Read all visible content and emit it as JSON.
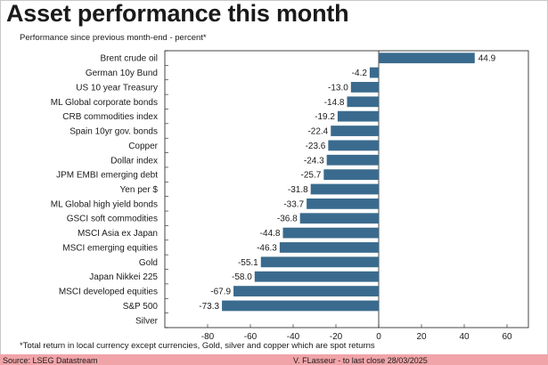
{
  "title": "Asset performance this month",
  "subtitle": "Performance since previous month-end - percent*",
  "footnote": "*Total return in local currency except currencies, Gold, silver and copper which are spot returns",
  "footer": {
    "source": "Source: LSEG Datastream",
    "credit": "V. FLasseur - to last close 28/03/2025"
  },
  "colors": {
    "bar": "#3a6b8e",
    "footer": "#f0a4a8"
  },
  "chart_data": {
    "type": "bar",
    "orientation": "horizontal",
    "categories": [
      "Brent crude oil",
      "German 10y Bund",
      "US 10 year Treasury",
      "ML Global corporate bonds",
      "CRB commodities index",
      "Spain 10yr gov. bonds",
      "Copper",
      "Dollar index",
      "JPM EMBI emerging debt",
      "Yen per $",
      "ML Global high yield bonds",
      "GSCI soft commodities",
      "MSCI Asia ex Japan",
      "MSCI emerging equities",
      "Gold",
      "Japan Nikkei 225",
      "MSCI developed equities",
      "S&P 500",
      "Silver"
    ],
    "values": [
      44.9,
      -4.2,
      -13.0,
      -14.8,
      -19.2,
      -22.4,
      -23.6,
      -24.3,
      -25.7,
      -31.8,
      -33.7,
      -36.8,
      -44.8,
      -46.3,
      -55.1,
      -58.0,
      -67.9,
      -73.3,
      null
    ],
    "value_labels": [
      "44.9",
      "-4.2",
      "-13.0",
      "-14.8",
      "-19.2",
      "-22.4",
      "-23.6",
      "-24.3",
      "-25.7",
      "-31.8",
      "-33.7",
      "-36.8",
      "-44.8",
      "-46.3",
      "-55.1",
      "-58.0",
      "-67.9",
      "-73.3",
      ""
    ],
    "xlim": [
      -100,
      70
    ],
    "xticks": [
      -80,
      -60,
      -40,
      -20,
      0,
      20,
      40,
      60
    ],
    "xtick_labels": [
      "-80",
      "-60",
      "-40",
      "-20",
      "0",
      "20",
      "40",
      "60"
    ],
    "grid": false
  }
}
